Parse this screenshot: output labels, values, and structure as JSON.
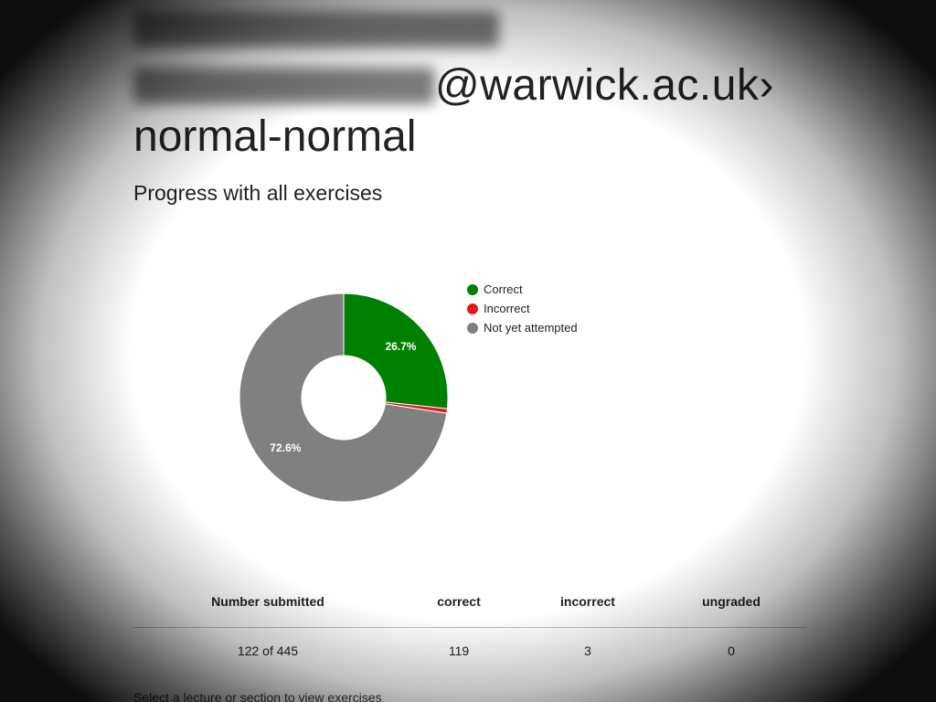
{
  "header": {
    "email_visible": "@warwick.ac.uk",
    "chevron": "›",
    "subtitle_line": "normal-normal"
  },
  "section_title": "Progress with all exercises",
  "chart_data": {
    "type": "pie",
    "donut": true,
    "title": "",
    "categories": [
      "Correct",
      "Incorrect",
      "Not yet attempted"
    ],
    "values": [
      26.7,
      0.7,
      72.6
    ],
    "labels_shown": [
      "26.7%",
      "",
      "72.6%"
    ],
    "colors": [
      "#008000",
      "#e31a1c",
      "#808080"
    ],
    "legend_placement": "right"
  },
  "table": {
    "headers": [
      "Number submitted",
      "correct",
      "incorrect",
      "ungraded"
    ],
    "row": [
      "122 of 445",
      "119",
      "3",
      "0"
    ]
  },
  "footer_text": "Select a lecture or section to view exercises"
}
